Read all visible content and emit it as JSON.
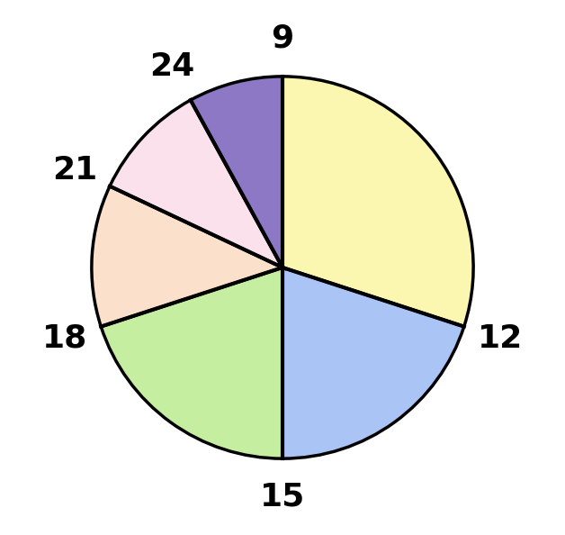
{
  "chart_data": {
    "type": "pie",
    "boundary_labels": [
      "9",
      "12",
      "15",
      "18",
      "21",
      "24"
    ],
    "values": [
      30,
      20,
      20,
      12,
      10,
      8
    ],
    "colors": [
      "#fbf7b0",
      "#a9c4f5",
      "#c6eea0",
      "#fbe0cc",
      "#fbe1ec",
      "#8c78c4"
    ]
  }
}
